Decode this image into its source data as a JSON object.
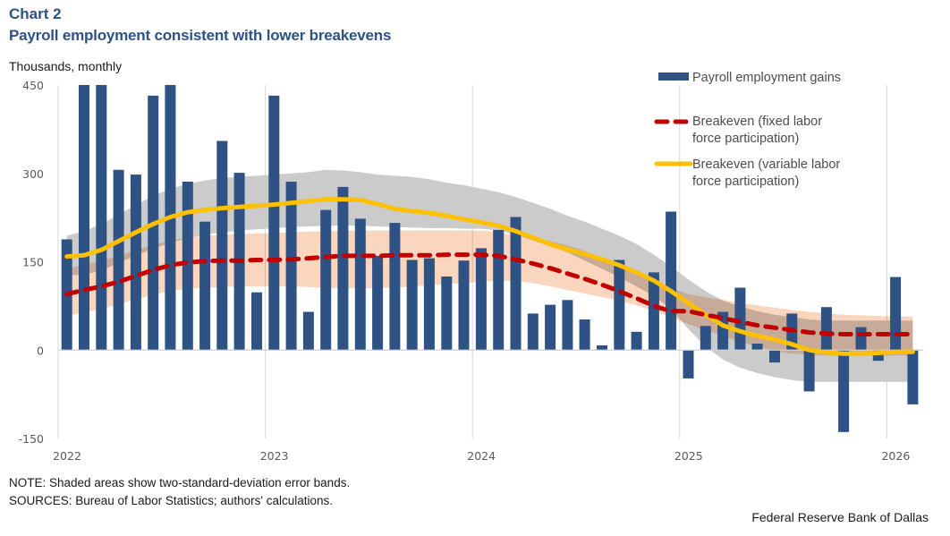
{
  "header": {
    "chart_label": "Chart 2",
    "title": "Payroll employment consistent with lower breakevens",
    "units": "Thousands,  monthly"
  },
  "footer": {
    "note": "NOTE: Shaded areas show two-standard-deviation error bands.",
    "sources": "SOURCES: Bureau of Labor Statistics; authors' calculations.",
    "credit": "Federal Reserve Bank of Dallas"
  },
  "chart_data": {
    "type": "bar",
    "title": "Payroll employment consistent with lower breakevens",
    "xlabel": "",
    "ylabel": "Thousands, monthly",
    "ylim": [
      -150,
      450
    ],
    "yticks": [
      450,
      300,
      150,
      0,
      -150
    ],
    "ytick_labels": [
      "450",
      "300",
      "150",
      "0",
      "-150"
    ],
    "xtick_labels": [
      "2022",
      "2023",
      "2024",
      "2025",
      "2026"
    ],
    "grid": "vertical at year starts",
    "legend_position": "top-right",
    "x": [
      "2022-01",
      "2022-02",
      "2022-03",
      "2022-04",
      "2022-05",
      "2022-06",
      "2022-07",
      "2022-08",
      "2022-09",
      "2022-10",
      "2022-11",
      "2022-12",
      "2023-01",
      "2023-02",
      "2023-03",
      "2023-04",
      "2023-05",
      "2023-06",
      "2023-07",
      "2023-08",
      "2023-09",
      "2023-10",
      "2023-11",
      "2023-12",
      "2024-01",
      "2024-02",
      "2024-03",
      "2024-04",
      "2024-05",
      "2024-06",
      "2024-07",
      "2024-08",
      "2024-09",
      "2024-10",
      "2024-11",
      "2024-12",
      "2025-01",
      "2025-02",
      "2025-03",
      "2025-04",
      "2025-05",
      "2025-06",
      "2025-07",
      "2025-08",
      "2025-09",
      "2025-10",
      "2025-11",
      "2025-12",
      "2026-01",
      "2026-02"
    ],
    "series": [
      {
        "name": "Payroll employment gains",
        "kind": "bar",
        "color": "#2d5283",
        "values": [
          188,
          450,
          450,
          306,
          298,
          432,
          450,
          286,
          218,
          355,
          301,
          98,
          432,
          286,
          65,
          238,
          277,
          223,
          160,
          216,
          153,
          156,
          125,
          152,
          173,
          204,
          226,
          62,
          77,
          85,
          52,
          8,
          153,
          31,
          132,
          235,
          -48,
          41,
          65,
          106,
          11,
          -21,
          62,
          -70,
          73,
          -139,
          39,
          -18,
          124,
          -92
        ]
      },
      {
        "name": "Breakeven (fixed labor force participation)",
        "kind": "line-dashed",
        "color": "#c00000",
        "band_color": "#f8c8a8",
        "values": [
          95,
          102,
          108,
          116,
          126,
          136,
          144,
          149,
          151,
          152,
          152,
          153,
          153,
          154,
          156,
          158,
          160,
          160,
          160,
          161,
          161,
          161,
          162,
          162,
          162,
          160,
          154,
          147,
          139,
          130,
          121,
          111,
          100,
          88,
          75,
          66,
          66,
          60,
          54,
          48,
          42,
          38,
          34,
          30,
          28,
          27,
          27,
          27,
          27,
          27
        ],
        "band_upper": [
          138,
          145,
          152,
          160,
          170,
          178,
          186,
          191,
          194,
          196,
          197,
          198,
          199,
          200,
          201,
          202,
          203,
          203,
          203,
          203,
          203,
          203,
          203,
          203,
          203,
          200,
          195,
          190,
          185,
          178,
          168,
          156,
          144,
          130,
          117,
          105,
          95,
          90,
          85,
          80,
          76,
          72,
          68,
          65,
          62,
          60,
          59,
          58,
          57,
          57
        ],
        "band_lower": [
          58,
          64,
          70,
          78,
          86,
          94,
          100,
          104,
          106,
          107,
          108,
          108,
          108,
          108,
          107,
          106,
          105,
          105,
          105,
          106,
          108,
          110,
          112,
          114,
          116,
          118,
          117,
          114,
          108,
          102,
          96,
          90,
          84,
          76,
          66,
          56,
          44,
          34,
          24,
          14,
          6,
          -2,
          -6,
          -8,
          -9,
          -9,
          -9,
          -9,
          -9,
          -9
        ]
      },
      {
        "name": "Breakeven (variable labor force participation)",
        "kind": "line",
        "color": "#ffc000",
        "band_color": "#c8c8c8",
        "values": [
          159,
          161,
          170,
          185,
          200,
          214,
          226,
          234,
          238,
          241,
          243,
          245,
          247,
          250,
          253,
          256,
          256,
          255,
          248,
          240,
          236,
          233,
          228,
          222,
          217,
          211,
          202,
          191,
          180,
          171,
          163,
          154,
          144,
          132,
          118,
          100,
          80,
          60,
          42,
          32,
          24,
          18,
          10,
          0,
          -4,
          -6,
          -6,
          -5,
          -3,
          -3
        ],
        "band_upper": [
          194,
          202,
          214,
          230,
          246,
          262,
          274,
          282,
          288,
          292,
          294,
          296,
          298,
          300,
          302,
          306,
          305,
          302,
          298,
          296,
          294,
          290,
          284,
          280,
          274,
          268,
          260,
          250,
          240,
          228,
          218,
          206,
          194,
          180,
          162,
          142,
          120,
          100,
          84,
          74,
          66,
          60,
          56,
          52,
          50,
          50,
          50,
          50,
          50,
          50
        ],
        "band_lower": [
          127,
          128,
          135,
          148,
          160,
          172,
          182,
          190,
          196,
          200,
          203,
          205,
          207,
          209,
          210,
          211,
          211,
          211,
          210,
          209,
          208,
          207,
          207,
          206,
          206,
          203,
          196,
          186,
          176,
          166,
          152,
          138,
          124,
          108,
          92,
          70,
          36,
          6,
          -16,
          -30,
          -39,
          -46,
          -51,
          -54,
          -54,
          -54,
          -54,
          -54,
          -54,
          -54
        ]
      }
    ],
    "legend": [
      {
        "label": "Payroll employment gains",
        "marker": "bar"
      },
      {
        "label_lines": [
          "Breakeven (fixed labor",
          "force participation)"
        ],
        "marker": "dashed"
      },
      {
        "label_lines": [
          "Breakeven (variable labor",
          "force participation)"
        ],
        "marker": "solid"
      }
    ]
  }
}
